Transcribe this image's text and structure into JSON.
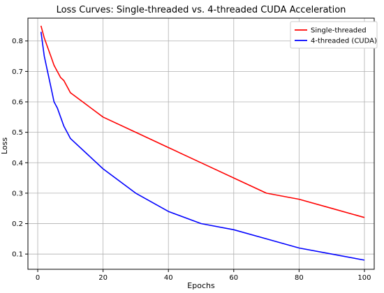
{
  "chart_data": {
    "type": "line",
    "title": "Loss Curves: Single-threaded vs. 4-threaded CUDA Acceleration",
    "xlabel": "Epochs",
    "ylabel": "Loss",
    "xlim": [
      -3,
      103
    ],
    "ylim": [
      0.05,
      0.875
    ],
    "x_ticks": [
      0,
      20,
      40,
      60,
      80,
      100
    ],
    "y_ticks": [
      0.1,
      0.2,
      0.3,
      0.4,
      0.5,
      0.6,
      0.7,
      0.8
    ],
    "grid": true,
    "legend_position": "top-right",
    "series": [
      {
        "name": "Single-threaded",
        "color": "#ff0000",
        "x": [
          1,
          2,
          3,
          4,
          5,
          6,
          7,
          8,
          9,
          10,
          20,
          30,
          40,
          50,
          60,
          70,
          80,
          90,
          100
        ],
        "y": [
          0.85,
          0.81,
          0.78,
          0.75,
          0.72,
          0.7,
          0.68,
          0.67,
          0.65,
          0.63,
          0.55,
          0.5,
          0.45,
          0.4,
          0.35,
          0.3,
          0.28,
          0.25,
          0.22
        ]
      },
      {
        "name": "4-threaded (CUDA)",
        "color": "#0000ff",
        "x": [
          1,
          2,
          3,
          4,
          5,
          6,
          7,
          8,
          9,
          10,
          20,
          30,
          40,
          50,
          60,
          70,
          80,
          90,
          100
        ],
        "y": [
          0.83,
          0.75,
          0.7,
          0.65,
          0.6,
          0.58,
          0.55,
          0.52,
          0.5,
          0.48,
          0.38,
          0.3,
          0.24,
          0.2,
          0.18,
          0.15,
          0.12,
          0.1,
          0.08
        ]
      }
    ]
  }
}
